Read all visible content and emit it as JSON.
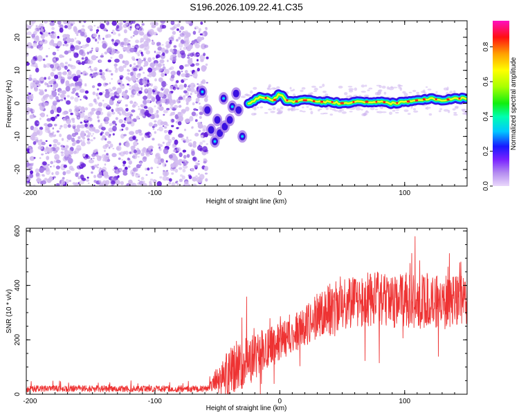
{
  "title": "S196.2026.109.22.41.C35",
  "chart_data": [
    {
      "type": "heatmap",
      "name": "spectrogram",
      "xlabel": "Height of straight line (km)",
      "ylabel": "Frequency (Hz)",
      "xlim": [
        -203,
        150
      ],
      "ylim": [
        -25,
        25
      ],
      "x_ticks": [
        -200,
        -100,
        0,
        100
      ],
      "x_tick_labels": [
        "-200",
        "-100",
        "0",
        "100"
      ],
      "y_ticks": [
        -20,
        -10,
        0,
        10,
        20
      ],
      "y_tick_labels": [
        "-20",
        "-10",
        "0",
        "10",
        "20"
      ],
      "noise_region_x": [
        -203,
        -58
      ],
      "transition_region_x": [
        -58,
        -25
      ],
      "ridge": {
        "x": [
          -25,
          -15,
          -5,
          0,
          5,
          10,
          20,
          30,
          40,
          50,
          60,
          70,
          80,
          90,
          100,
          110,
          120,
          130,
          140,
          150
        ],
        "y": [
          0,
          2,
          1,
          3,
          1,
          0.5,
          1,
          0.5,
          0.5,
          0,
          0.5,
          0.5,
          0.5,
          0,
          0.5,
          1,
          1.5,
          1,
          1.5,
          1.5
        ]
      },
      "transition_blobs": {
        "x": [
          -62,
          -58,
          -55,
          -52,
          -50,
          -48,
          -45,
          -44,
          -40,
          -38,
          -35,
          -33,
          -30
        ],
        "y": [
          3.5,
          -2,
          -8,
          -11.5,
          -5,
          -9,
          1.5,
          -7,
          -5,
          -1,
          3,
          -2,
          -10
        ]
      },
      "colorbar": {
        "label": "Normalized spectral amplitude",
        "range": [
          0,
          0.95
        ],
        "ticks": [
          0,
          0.2,
          0.4,
          0.6,
          0.8
        ],
        "tick_labels": [
          "0.0",
          "0.2",
          "0.4",
          "0.6",
          "0.8"
        ]
      }
    },
    {
      "type": "line",
      "name": "snr",
      "xlabel": "Height of straight line (km)",
      "ylabel": "SNR (10 * v/v)",
      "xlim": [
        -203,
        150
      ],
      "ylim": [
        0,
        610
      ],
      "x_ticks": [
        -200,
        -100,
        0,
        100
      ],
      "x_tick_labels": [
        "-200",
        "-100",
        "0",
        "100"
      ],
      "y_ticks": [
        0,
        200,
        400,
        600
      ],
      "y_tick_labels": [
        "0",
        "200",
        "400",
        "600"
      ],
      "series": [
        {
          "name": "SNR",
          "color": "#ee3333",
          "envelope_x": [
            -203,
            -60,
            -55,
            -48,
            -40,
            -30,
            -20,
            -10,
            0,
            10,
            20,
            30,
            40,
            50,
            60,
            70,
            80,
            90,
            100,
            110,
            120,
            130,
            140,
            150
          ],
          "envelope_base": [
            20,
            20,
            30,
            60,
            80,
            110,
            140,
            170,
            190,
            220,
            250,
            290,
            310,
            330,
            340,
            350,
            350,
            340,
            345,
            340,
            340,
            345,
            340,
            340
          ],
          "envelope_spread": [
            12,
            12,
            20,
            60,
            90,
            100,
            90,
            80,
            70,
            70,
            75,
            85,
            95,
            95,
            95,
            100,
            100,
            95,
            100,
            100,
            100,
            95,
            95,
            95
          ]
        }
      ]
    }
  ],
  "colors": {
    "noise_light": "#d2bbf0",
    "noise_mid": "#a57be6",
    "noise_dark": "#6018d8",
    "snr_line": "#ee3333"
  }
}
